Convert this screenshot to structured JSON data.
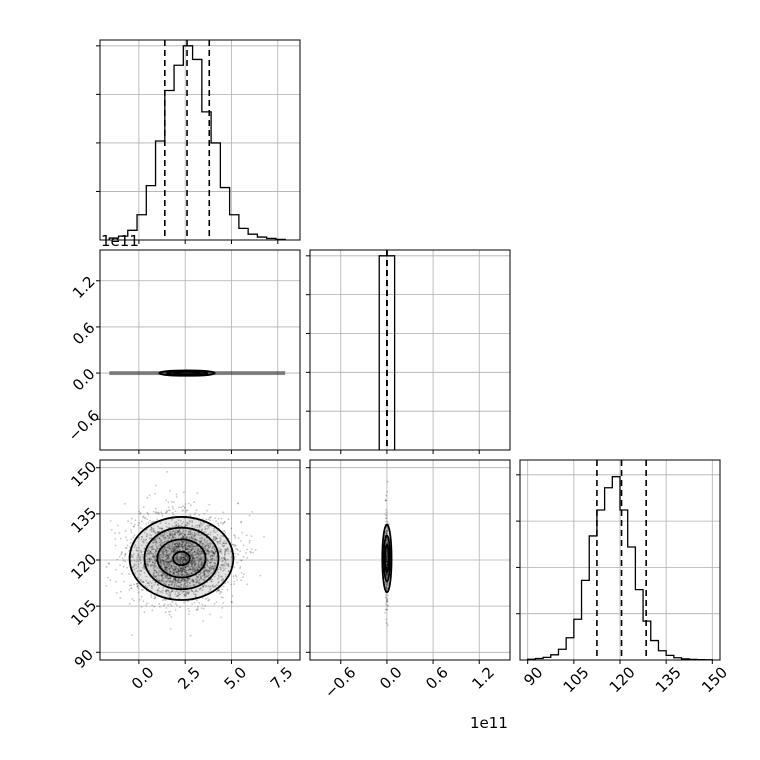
{
  "chart_data": {
    "type": "corner",
    "colors": {
      "ink": "#000000",
      "grid": "#b0b0b0",
      "background": "#ffffff"
    },
    "grid": true,
    "parameters": [
      {
        "offset_label": "1e11",
        "range": [
          -2.1,
          8.7
        ],
        "ticks": [
          0.0,
          2.5,
          5.0,
          7.5
        ],
        "tick_labels": [
          "0.0",
          "2.5",
          "5.0",
          "7.5"
        ],
        "quantiles": [
          1.4,
          2.6,
          3.8
        ]
      },
      {
        "offset_label": "1e11",
        "range": [
          -1.0,
          1.6
        ],
        "ticks": [
          -0.6,
          0.0,
          0.6,
          1.2
        ],
        "tick_labels": [
          "−0.6",
          "0.0",
          "0.6",
          "1.2"
        ],
        "quantiles": [
          0.0,
          0.0,
          0.0
        ]
      },
      {
        "offset_label": "",
        "range": [
          87.5,
          152.5
        ],
        "ticks": [
          90,
          105,
          120,
          135,
          150
        ],
        "tick_labels": [
          "90",
          "105",
          "120",
          "135",
          "150"
        ],
        "quantiles": [
          112.5,
          120.5,
          128.5
        ]
      }
    ],
    "histograms": [
      {
        "param": 0,
        "bin_edges": [
          -1.6,
          -1.1,
          -0.6,
          -0.1,
          0.4,
          0.9,
          1.4,
          1.9,
          2.4,
          2.9,
          3.4,
          3.9,
          4.4,
          4.9,
          5.4,
          5.9,
          6.4,
          6.9,
          7.4,
          7.9
        ],
        "counts": [
          0.01,
          0.02,
          0.05,
          0.13,
          0.28,
          0.51,
          0.77,
          0.9,
          1.0,
          0.93,
          0.66,
          0.5,
          0.27,
          0.13,
          0.06,
          0.03,
          0.015,
          0.008,
          0.003
        ],
        "ymax": 1.03,
        "ygrid": [
          0.25,
          0.5,
          0.75,
          1.0
        ]
      },
      {
        "param": 1,
        "bin_edges": [
          -0.1,
          0.1
        ],
        "counts": [
          1.0
        ],
        "ymax": 1.03,
        "ygrid": [
          0.2,
          0.4,
          0.6,
          0.8,
          1.0
        ]
      },
      {
        "param": 2,
        "bin_edges": [
          90,
          92.5,
          95,
          97.5,
          100,
          102.5,
          105,
          107.5,
          110,
          112.5,
          115,
          117.5,
          120,
          122.5,
          125,
          127.5,
          130,
          132.5,
          135,
          137.5,
          140,
          142.5,
          145,
          147.5,
          150
        ],
        "counts": [
          0.004,
          0.008,
          0.014,
          0.028,
          0.058,
          0.12,
          0.22,
          0.43,
          0.67,
          0.81,
          0.93,
          0.99,
          0.81,
          0.61,
          0.38,
          0.21,
          0.105,
          0.05,
          0.025,
          0.012,
          0.006,
          0.003,
          0.002,
          0.001
        ],
        "ymax": 1.08,
        "ygrid": [
          0.25,
          0.5,
          0.75,
          1.0
        ]
      }
    ],
    "joint_panels": [
      {
        "x_param": 0,
        "y_param": 1,
        "center": [
          2.6,
          0.0
        ],
        "contour_widths": [
          [
            1.5,
            0.035
          ],
          [
            1.1,
            0.022
          ],
          [
            0.7,
            0.012
          ]
        ],
        "density_band": [
          -1.6,
          7.9
        ]
      },
      {
        "x_param": 0,
        "y_param": 2,
        "center": [
          2.3,
          120.5
        ],
        "contour_widths": [
          [
            2.8,
            13.5
          ],
          [
            2.0,
            10.0
          ],
          [
            1.3,
            6.2
          ],
          [
            0.45,
            2.2
          ]
        ],
        "scatter_spread": [
          1.35,
          7.0
        ]
      },
      {
        "x_param": 1,
        "y_param": 2,
        "center": [
          0.0,
          120.5
        ],
        "contour_widths": [
          [
            0.06,
            11.0
          ],
          [
            0.04,
            7.5
          ],
          [
            0.022,
            4.5
          ]
        ],
        "scatter_spread": [
          0.012,
          8.0
        ]
      }
    ]
  }
}
